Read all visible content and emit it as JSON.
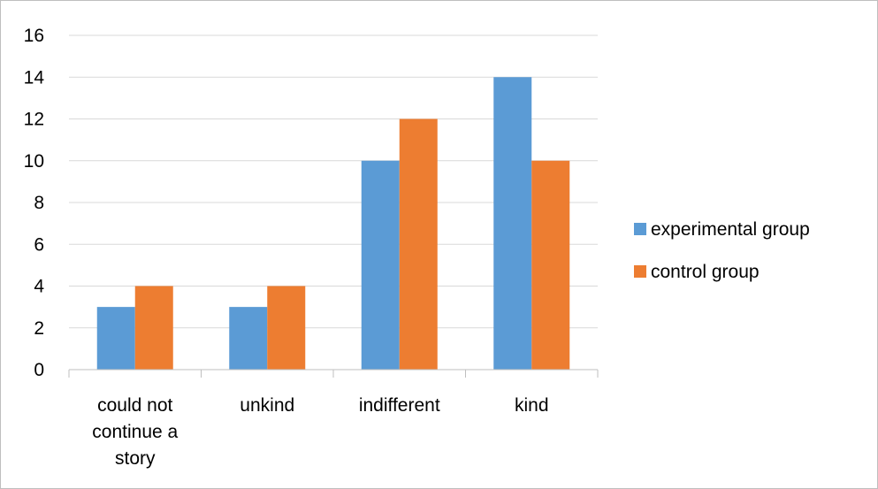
{
  "chart_data": {
    "type": "bar",
    "title": "",
    "xlabel": "",
    "ylabel": "",
    "categories": [
      [
        "could not",
        "continue a",
        "story"
      ],
      [
        "unkind"
      ],
      [
        "indifferent"
      ],
      [
        "kind"
      ]
    ],
    "series": [
      {
        "name": "experimental group",
        "color": "#5B9BD5",
        "values": [
          3,
          3,
          10,
          14
        ]
      },
      {
        "name": "control group",
        "color": "#ED7D31",
        "values": [
          4,
          4,
          12,
          10
        ]
      }
    ],
    "ylim": [
      0,
      16
    ],
    "yticks": [
      0,
      2,
      4,
      6,
      8,
      10,
      12,
      14,
      16
    ],
    "grid": true,
    "legend_position": "right"
  }
}
